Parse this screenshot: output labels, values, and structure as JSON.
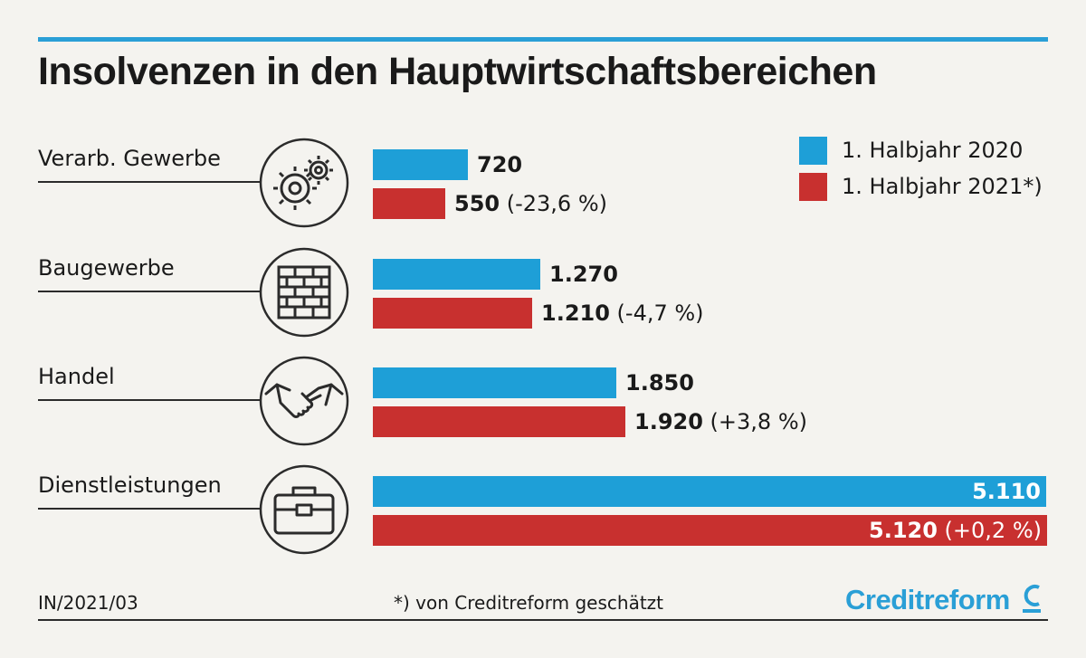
{
  "title": "Insolvenzen in den Hauptwirtschaftsbereichen",
  "legend": [
    {
      "label": "1. Halbjahr 2020",
      "color": "#1e9fd7"
    },
    {
      "label": "1. Halbjahr 2021*)",
      "color": "#c8302f"
    }
  ],
  "chart_data": {
    "type": "bar",
    "orientation": "horizontal",
    "categories": [
      "Verarb. Gewerbe",
      "Baugewerbe",
      "Handel",
      "Dienstleistungen"
    ],
    "category_icons": [
      "gears-icon",
      "brick-wall-icon",
      "handshake-icon",
      "briefcase-icon"
    ],
    "series": [
      {
        "name": "1. Halbjahr 2020",
        "values": [
          720,
          1270,
          1850,
          5110
        ],
        "labels": [
          "720",
          "1.270",
          "1.850",
          "5.110"
        ]
      },
      {
        "name": "1. Halbjahr 2021*)",
        "values": [
          550,
          1210,
          1920,
          5120
        ],
        "labels": [
          "550",
          "1.210",
          "1.920",
          "5.120"
        ],
        "changes": [
          "(-23,6 %)",
          "(-4,7 %)",
          "(+3,8 %)",
          "(+0,2 %)"
        ]
      }
    ],
    "xlim": [
      0,
      5120
    ],
    "grid": false,
    "legend_position": "top-right"
  },
  "footer": {
    "code": "IN/2021/03",
    "note": "*) von Creditreform geschätzt",
    "brand": "Creditreform"
  },
  "colors": {
    "accent": "#2a9fd6",
    "series_2020": "#1e9fd7",
    "series_2021": "#c8302f",
    "brand": "#2a9fd6"
  }
}
